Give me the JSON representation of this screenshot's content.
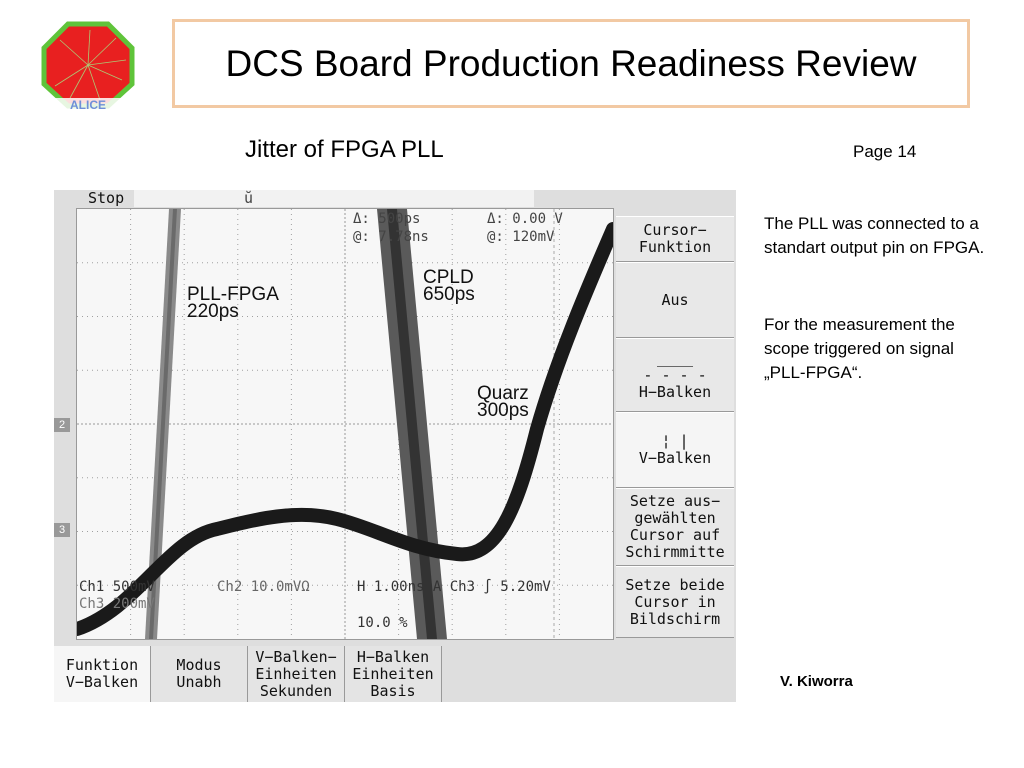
{
  "slide": {
    "title": "DCS Board Production Readiness Review",
    "subtitle": "Jitter of FPGA PLL",
    "page": "Page 14",
    "notes": [
      "The PLL was connected to a standart output pin on FPGA.",
      "For the measurement the scope triggered on signal „PLL-FPGA“."
    ],
    "author": "V. Kiworra",
    "logo_text": "ALICE"
  },
  "scope": {
    "status": "Stop",
    "delta_time": "Δ: 500ps",
    "at_time": "@: 7.78ns",
    "delta_volt": "Δ: 0.00 V",
    "at_volt": "@: 120mV",
    "ch1": "Ch1 500mV",
    "ch2": "Ch2 10.0mVΩ",
    "horizontal": "H 1.00ns A Ch3 ∫ 5.20mV",
    "ch3": "Ch3 200mV",
    "trigger_pos": "10.0 %",
    "marker_2": "2",
    "marker_3": "3",
    "annotations": {
      "pll": [
        "PLL-FPGA",
        "220ps"
      ],
      "cpld": [
        "CPLD",
        "650ps"
      ],
      "quarz": [
        "Quarz",
        "300ps"
      ]
    },
    "side_menu": [
      [
        "Cursor−",
        "Funktion"
      ],
      [
        "Aus"
      ],
      [
        "H−Balken"
      ],
      [
        "V−Balken"
      ],
      [
        "Setze aus−",
        "gewählten",
        "Cursor auf",
        "Schirmmitte"
      ],
      [
        "Setze beide",
        "Cursor in",
        "Bildschirm"
      ]
    ],
    "bottom_menu": [
      [
        "Funktion",
        "V−Balken"
      ],
      [
        "Modus",
        "Unabh"
      ],
      [
        "V−Balken−",
        "Einheiten",
        "Sekunden"
      ],
      [
        "H−Balken",
        "Einheiten",
        "Basis"
      ]
    ],
    "colors": {
      "trace": "#1a1a1a",
      "grid": "#a0a0a0",
      "title_border": "#f2c9a3"
    }
  }
}
